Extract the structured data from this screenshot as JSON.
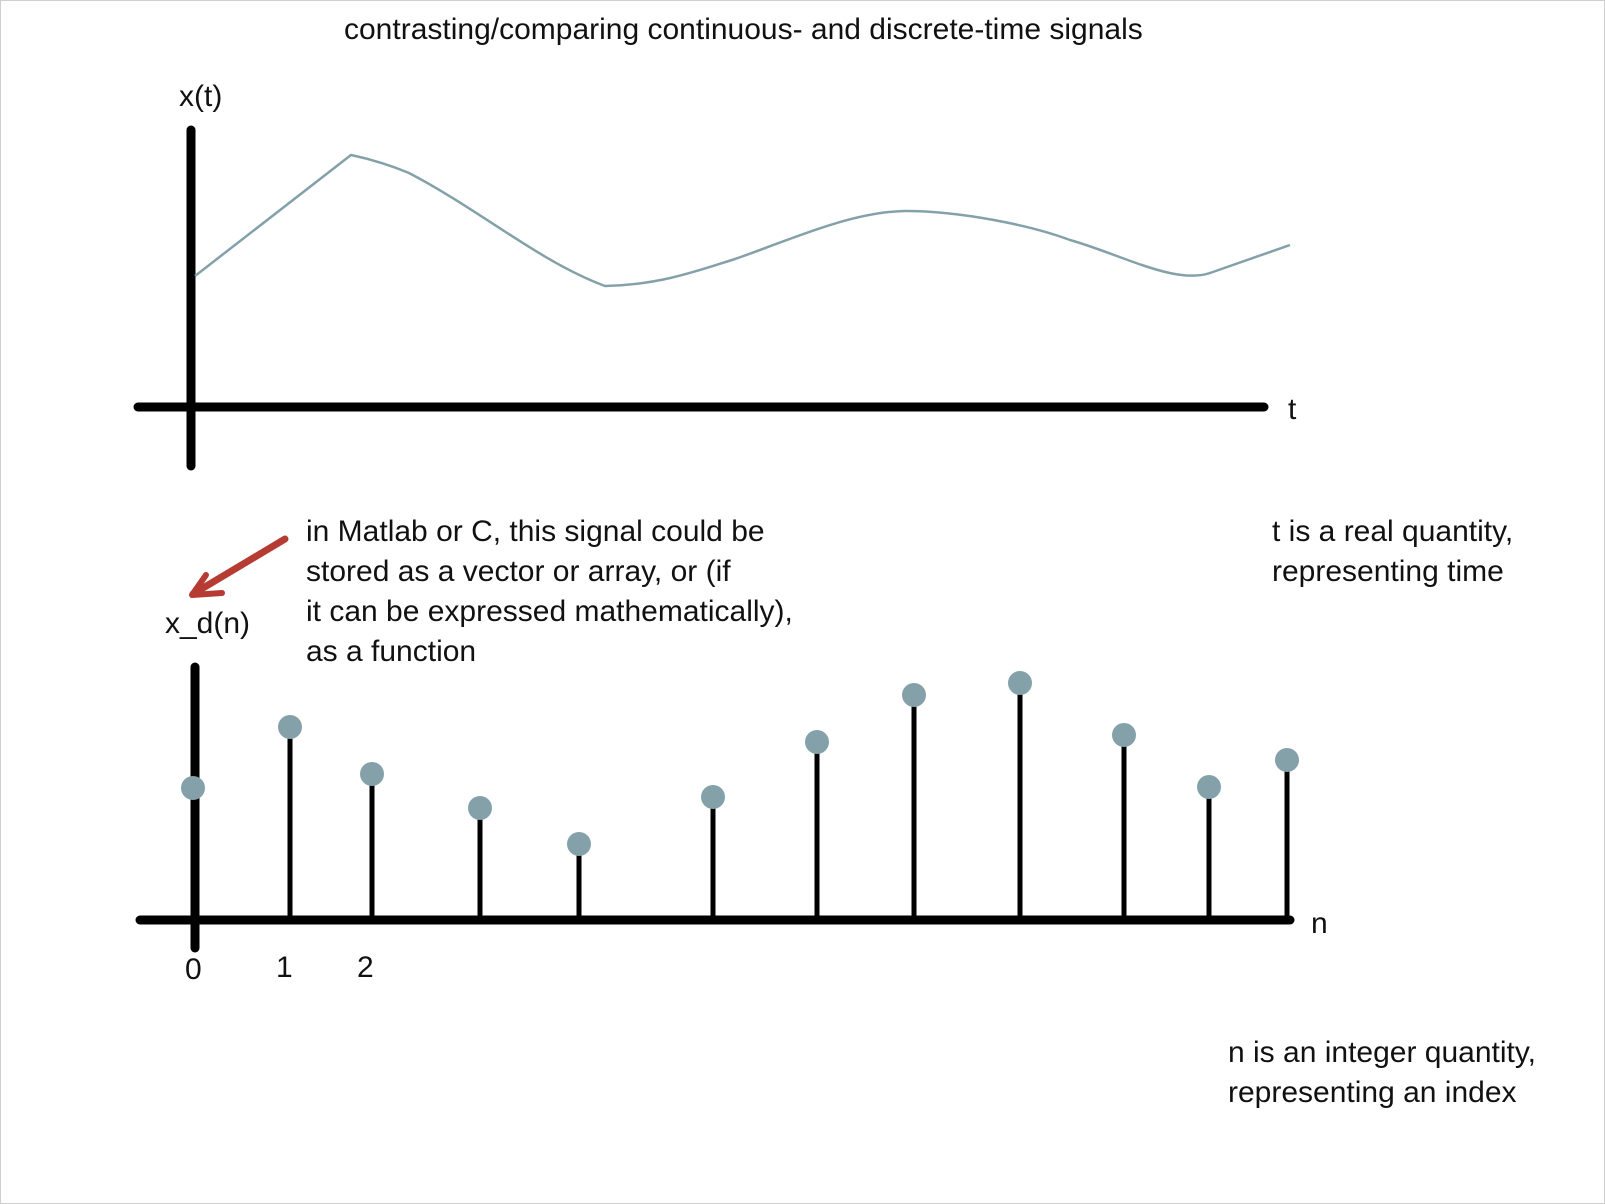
{
  "title": "contrasting/comparing continuous- and discrete-time signals",
  "continuous_plot": {
    "y_label": "x(t)",
    "x_label": "t",
    "curve_color": "#84a1aa"
  },
  "discrete_plot": {
    "y_label": "x_d(n)",
    "x_label": "n",
    "tick_labels": [
      "0",
      "1",
      "2"
    ],
    "stem_color": "#000000",
    "marker_color": "#84a1aa"
  },
  "annotations": {
    "storage_note": "in Matlab or C, this signal could be\nstored as a vector or array, or (if\nit can be expressed mathematically),\nas a function",
    "t_note": "t is a real quantity,\nrepresenting time",
    "n_note": "n is an integer quantity,\nrepresenting an index",
    "arrow_color": "#b63c33"
  }
}
